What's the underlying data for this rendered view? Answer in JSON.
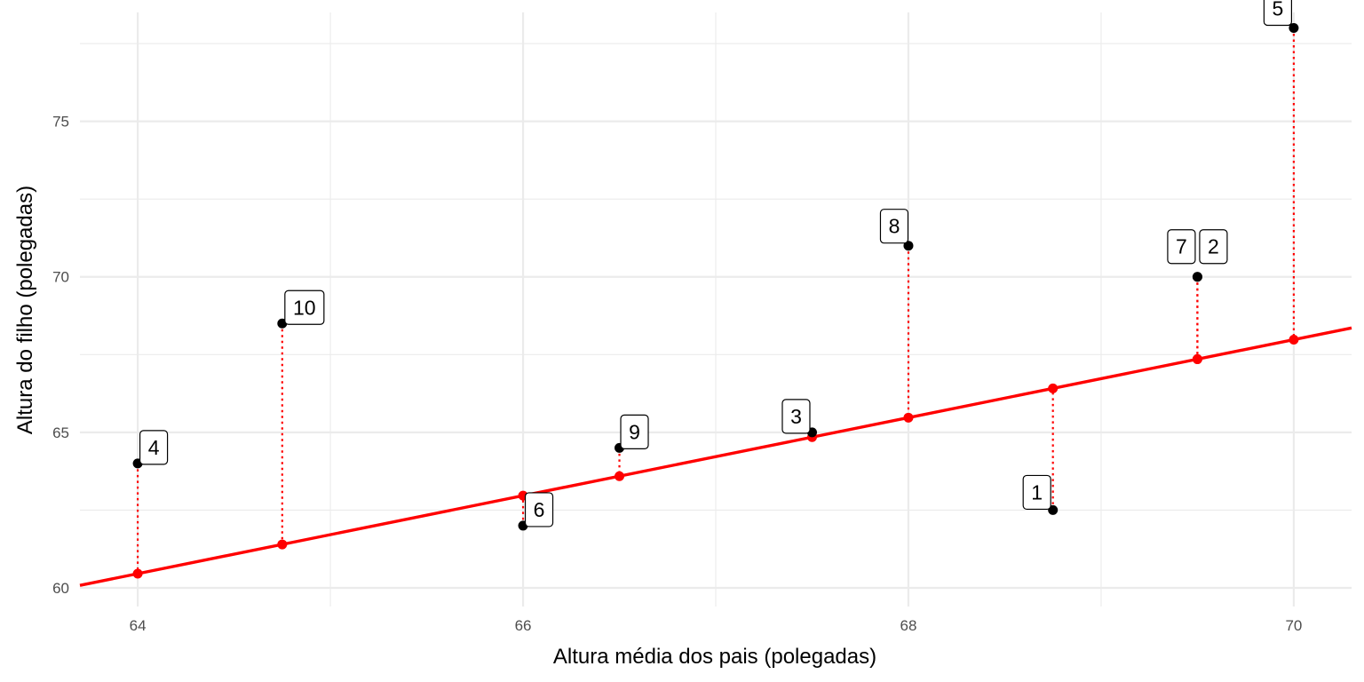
{
  "chart_data": {
    "type": "scatter",
    "xlabel": "Altura média dos pais (polegadas)",
    "ylabel": "Altura do filho (polegadas)",
    "xlim": [
      63.7,
      70.3
    ],
    "ylim": [
      59.4,
      78.5
    ],
    "x_ticks": [
      64,
      66,
      68,
      70
    ],
    "y_ticks": [
      60,
      65,
      70,
      75
    ],
    "grid": true,
    "points": [
      {
        "label": "1",
        "x": 68.75,
        "y": 62.5
      },
      {
        "label": "2",
        "x": 69.5,
        "y": 70.0
      },
      {
        "label": "3",
        "x": 67.5,
        "y": 65.0
      },
      {
        "label": "4",
        "x": 64.0,
        "y": 64.0
      },
      {
        "label": "5",
        "x": 70.0,
        "y": 78.0
      },
      {
        "label": "6",
        "x": 66.0,
        "y": 62.0
      },
      {
        "label": "7",
        "x": 69.5,
        "y": 70.0
      },
      {
        "label": "8",
        "x": 68.0,
        "y": 71.0
      },
      {
        "label": "9",
        "x": 66.5,
        "y": 64.5
      },
      {
        "label": "10",
        "x": 64.75,
        "y": 68.5
      }
    ],
    "regression": {
      "intercept": -19.8,
      "slope": 1.254
    },
    "colors": {
      "points": "#000000",
      "fitted": "#ff0000",
      "line": "#ff0000",
      "residual": "#ff0000",
      "grid": "#ebebeb"
    }
  }
}
